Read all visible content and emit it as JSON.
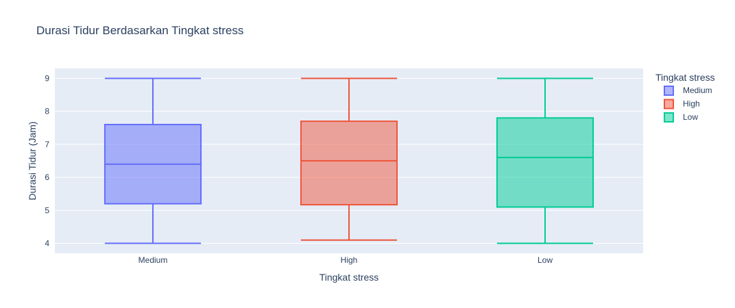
{
  "chart_data": {
    "type": "box",
    "title": "Durasi Tidur Berdasarkan Tingkat stress",
    "xlabel": "Tingkat stress",
    "ylabel": "Durasi Tidur (Jam)",
    "ylim": [
      3.7,
      9.3
    ],
    "yticks": [
      4,
      5,
      6,
      7,
      8,
      9
    ],
    "grid": true,
    "legend": {
      "title": "Tingkat stress",
      "position": "right"
    },
    "categories": [
      "Medium",
      "High",
      "Low"
    ],
    "series": [
      {
        "name": "Medium",
        "color": "#636efa",
        "fill": "rgba(99,110,250,0.5)",
        "min": 4.0,
        "q1": 5.2,
        "median": 6.4,
        "q3": 7.6,
        "max": 9.0
      },
      {
        "name": "High",
        "color": "#ef553b",
        "fill": "rgba(239,85,59,0.5)",
        "min": 4.1,
        "q1": 5.17,
        "median": 6.5,
        "q3": 7.7,
        "max": 9.0
      },
      {
        "name": "Low",
        "color": "#00cc96",
        "fill": "rgba(0,204,150,0.5)",
        "min": 4.0,
        "q1": 5.1,
        "median": 6.6,
        "q3": 7.8,
        "max": 9.0
      }
    ]
  }
}
